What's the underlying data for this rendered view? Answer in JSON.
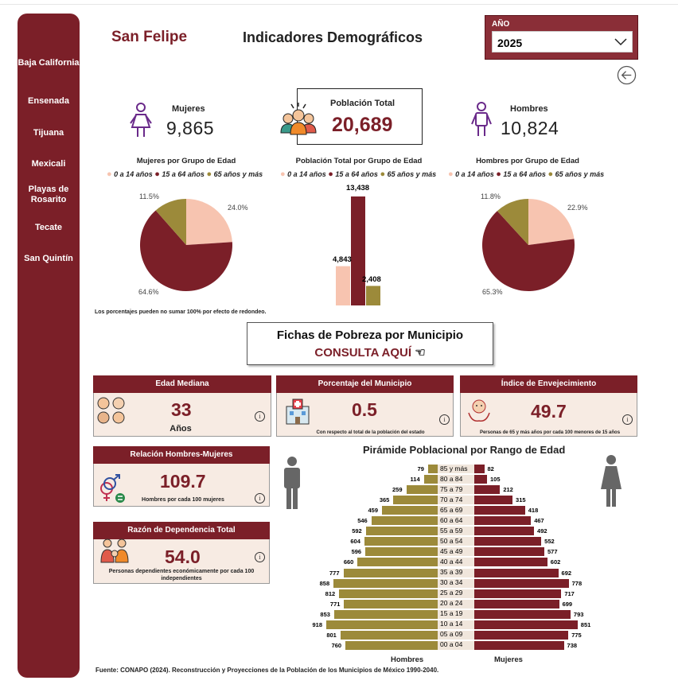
{
  "sidebar": {
    "items": [
      {
        "label": "Baja California"
      },
      {
        "label": "Ensenada"
      },
      {
        "label": "Tijuana"
      },
      {
        "label": "Mexicali"
      },
      {
        "label": "Playas de Rosarito"
      },
      {
        "label": "Tecate"
      },
      {
        "label": "San Quintín"
      }
    ]
  },
  "header": {
    "municipio": "San Felipe",
    "title": "Indicadores Demográficos",
    "year_label": "AÑO",
    "year_value": "2025"
  },
  "kpis": {
    "mujeres_label": "Mujeres",
    "mujeres_value": "9,865",
    "total_label": "Población Total",
    "total_value": "20,689",
    "hombres_label": "Hombres",
    "hombres_value": "10,824"
  },
  "legend": {
    "g1": "0 a 14 años",
    "g2": "15 a 64 años",
    "g3": "65 años y más"
  },
  "colors": {
    "accent": "#7b1f28",
    "g1": "#f7c4b0",
    "g2": "#7b1f28",
    "g3": "#9c8a3a"
  },
  "note_redondeo": "Los porcentajes pueden no sumar 100% por efecto de redondeo.",
  "fichas": {
    "title": "Fichas de Pobreza por Municipio",
    "link": "CONSULTA AQUÍ"
  },
  "cards": {
    "edad_mediana": {
      "title": "Edad Mediana",
      "value": "33",
      "sub": "Años"
    },
    "porcentaje": {
      "title": "Porcentaje del Municipio",
      "value": "0.5",
      "sub": "Con respecto al total de la población del estado"
    },
    "envejecimiento": {
      "title": "Índice de Envejecimiento",
      "value": "49.7",
      "sub": "Personas  de 65 y más años por cada 100 menores de 15 años"
    },
    "relacion": {
      "title": "Relación Hombres-Mujeres",
      "value": "109.7",
      "sub": "Hombres por cada 100 mujeres"
    },
    "dependencia": {
      "title": "Razón de Dependencia Total",
      "value": "54.0",
      "sub": "Personas dependientes económicamente por cada 100 independientes"
    }
  },
  "pyramid": {
    "title": "Pirámide Poblacional por Rango de Edad",
    "hombres_label": "Hombres",
    "mujeres_label": "Mujeres"
  },
  "source": "Fuente: CONAPO (2024). Reconstrucción y Proyecciones de la Población de los Municipios de México 1990-2040.",
  "chart_data": [
    {
      "type": "pie",
      "title": "Mujeres por Grupo de Edad",
      "categories": [
        "0 a 14 años",
        "15 a 64 años",
        "65 años y más"
      ],
      "values": [
        24.0,
        64.6,
        11.5
      ],
      "labels": [
        "24.0%",
        "64.6%",
        "11.5%"
      ]
    },
    {
      "type": "bar",
      "title": "Población Total por Grupo de Edad",
      "categories": [
        "0 a 14 años",
        "15 a 64 años",
        "65 años y más"
      ],
      "values": [
        4843,
        13438,
        2408
      ],
      "labels": [
        "4,843",
        "13,438",
        "2,408"
      ]
    },
    {
      "type": "pie",
      "title": "Hombres por Grupo de Edad",
      "categories": [
        "0 a 14 años",
        "15 a 64 años",
        "65 años y más"
      ],
      "values": [
        22.9,
        65.3,
        11.8
      ],
      "labels": [
        "22.9%",
        "65.3%",
        "11.8%"
      ]
    },
    {
      "type": "bar",
      "title": "Pirámide Poblacional por Rango de Edad",
      "categories": [
        "85 y más",
        "80 a 84",
        "75 a 79",
        "70 a 74",
        "65 a 69",
        "60 a 64",
        "55 a 59",
        "50 a 54",
        "45 a 49",
        "40 a 44",
        "35 a 39",
        "30 a 34",
        "25 a 29",
        "20 a 24",
        "15 a 19",
        "10 a 14",
        "05 a 09",
        "00 a 04"
      ],
      "series": [
        {
          "name": "Hombres",
          "values": [
            79,
            114,
            259,
            365,
            459,
            546,
            592,
            604,
            596,
            660,
            777,
            858,
            812,
            771,
            853,
            918,
            801,
            760
          ]
        },
        {
          "name": "Mujeres",
          "values": [
            82,
            105,
            212,
            315,
            418,
            467,
            492,
            552,
            577,
            602,
            692,
            778,
            717,
            699,
            793,
            851,
            775,
            738
          ]
        }
      ]
    }
  ]
}
